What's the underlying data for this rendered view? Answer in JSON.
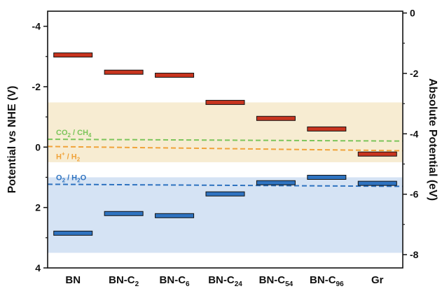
{
  "chart_data": {
    "type": "band-diagram",
    "ylabel_left": "Potential vs NHE (V)",
    "ylabel_right": "Absolute Potential (eV)",
    "ylim_left": [
      4,
      -4.5
    ],
    "left_ticks": [
      -4,
      -2,
      0,
      2,
      4
    ],
    "left_tick_labels": [
      "-4",
      "-2",
      "0",
      "2",
      "4"
    ],
    "right_ticks": [
      0,
      -2,
      -4,
      -6,
      -8
    ],
    "right_tick_labels": [
      "0",
      "-2",
      "-4",
      "-6",
      "-8"
    ],
    "right_offset": -4.44,
    "categories": [
      {
        "base": "BN",
        "sub": ""
      },
      {
        "base": "BN-C",
        "sub": "2"
      },
      {
        "base": "BN-C",
        "sub": "6"
      },
      {
        "base": "BN-C",
        "sub": "24"
      },
      {
        "base": "BN-C",
        "sub": "54"
      },
      {
        "base": "BN-C",
        "sub": "96"
      },
      {
        "base": "Gr",
        "sub": ""
      }
    ],
    "series": [
      {
        "name": "",
        "color": "#c8351f",
        "values": [
          -3.05,
          -2.48,
          -2.38,
          -1.48,
          -0.95,
          -0.6,
          0.23
        ]
      },
      {
        "name": "",
        "color": "#2f73c0",
        "values": [
          2.85,
          2.2,
          2.27,
          1.55,
          1.18,
          1.0,
          1.2
        ]
      }
    ],
    "bands": [
      {
        "from": -1.48,
        "to": 0.5,
        "color": "#f7ecd2"
      },
      {
        "from": 1.0,
        "to": 3.5,
        "color": "#d5e3f4"
      }
    ],
    "reference_lines": [
      {
        "parts": [
          [
            "CO",
            ""
          ],
          [
            "2",
            "sub"
          ],
          [
            " / CH",
            ""
          ],
          [
            "4",
            "sub"
          ]
        ],
        "y_start": -0.26,
        "y_end": -0.2,
        "color": "#7cc55b"
      },
      {
        "parts": [
          [
            "H",
            ""
          ],
          [
            "+",
            "sup"
          ],
          [
            " / H",
            ""
          ],
          [
            "2",
            "sub"
          ]
        ],
        "y_start": -0.02,
        "y_end": 0.12,
        "color": "#f0a33a"
      },
      {
        "parts": [
          [
            "O",
            ""
          ],
          [
            "2",
            "sub"
          ],
          [
            " / H",
            ""
          ],
          [
            "2",
            "sub"
          ],
          [
            "O",
            ""
          ]
        ],
        "y_start": 1.23,
        "y_end": 1.3,
        "color": "#2f73c0"
      }
    ],
    "grid": false,
    "legend": "none"
  }
}
